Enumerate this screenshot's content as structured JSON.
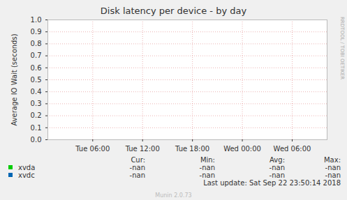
{
  "chart_data": {
    "type": "line",
    "title": "Disk latency per device - by day",
    "y_label": "Average IO Wait (seconds)",
    "x": [
      6,
      12,
      18,
      24,
      30
    ],
    "series": [
      {
        "name": "xvda",
        "color": "#00cc00",
        "values": [
          null,
          null,
          null,
          null,
          null
        ],
        "cur": "-nan",
        "min": "-nan",
        "avg": "-nan",
        "max": "-nan"
      },
      {
        "name": "xvdc",
        "color": "#0066b3",
        "values": [
          null,
          null,
          null,
          null,
          null
        ],
        "cur": "-nan",
        "min": "-nan",
        "avg": "-nan",
        "max": "-nan"
      }
    ],
    "stat_headers": [
      "Cur:",
      "Min:",
      "Avg:",
      "Max:"
    ],
    "xlim": [
      0.6,
      34.2
    ],
    "xticks": [
      {
        "value": 6,
        "label": "Tue 06:00"
      },
      {
        "value": 12,
        "label": "Tue 12:00"
      },
      {
        "value": 18,
        "label": "Tue 18:00"
      },
      {
        "value": 24,
        "label": "Wed 00:00"
      },
      {
        "value": 30,
        "label": "Wed 06:00"
      }
    ],
    "ylim": [
      0,
      1
    ],
    "yticks": [
      {
        "value": 0,
        "label": "0.0"
      },
      0.1,
      0.2,
      0.3,
      0.4,
      0.5,
      0.6,
      0.7,
      0.8,
      0.9,
      {
        "value": 1,
        "label": "1.0"
      }
    ],
    "grid": true,
    "last_update": "Last update: Sat Sep 22 23:50:14 2018",
    "footer": "Munin 2.0.73",
    "watermark": "RRDTOOL / TOBI OETIKER"
  }
}
